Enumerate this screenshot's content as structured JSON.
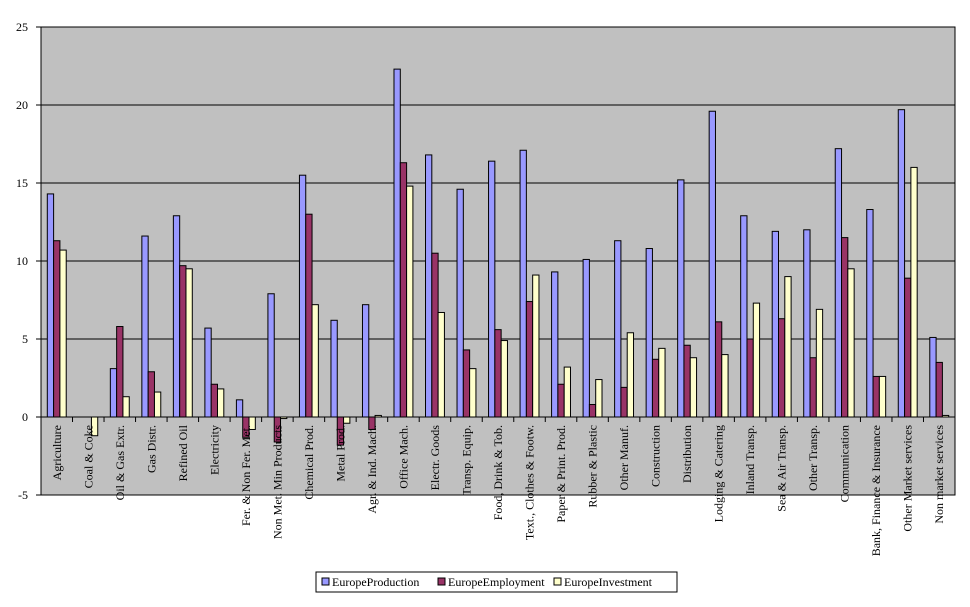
{
  "chart_data": {
    "type": "bar",
    "ylim": [
      -5,
      25
    ],
    "yticks": [
      -5,
      0,
      5,
      10,
      15,
      20,
      25
    ],
    "grid": true,
    "legend_position": "bottom",
    "background": "#c0c0c0",
    "categories": [
      "Agriculture",
      "Coal & Coke",
      "Oil & Gas Extr.",
      "Gas Distr.",
      "Refined Oil",
      "Electricity",
      "Fer. & Non Fer. Met.",
      "Non Met. Min Products",
      "Chemical Prod.",
      "Metal Prod.",
      "Agr. & Ind. Mach.",
      "Office Mach.",
      "Electr. Goods",
      "Transp. Equip.",
      "Food, Drink & Tob.",
      "Text., Clothes & Footw.",
      "Paper & Print. Prod.",
      "Rubber & Plastic",
      "Other Manuf.",
      "Construction",
      "Distribution",
      "Lodging & Catering",
      "Inland Transp.",
      "Sea & Air Transp.",
      "Other Transp.",
      "Communication",
      "Bank, Finance & Insurance",
      "Other Market services",
      "Non market services"
    ],
    "series": [
      {
        "name": "EuropeProduction",
        "color": "#9999ff",
        "values": [
          14.3,
          0,
          3.1,
          11.6,
          12.9,
          5.7,
          1.1,
          7.9,
          15.5,
          6.2,
          7.2,
          22.3,
          16.8,
          14.6,
          16.4,
          17.1,
          9.3,
          10.1,
          11.3,
          10.8,
          15.2,
          19.6,
          12.9,
          11.9,
          12.0,
          17.2,
          13.3,
          19.7,
          5.1
        ]
      },
      {
        "name": "EuropeEmployment",
        "color": "#993366",
        "values": [
          11.3,
          0,
          5.8,
          2.9,
          9.7,
          2.1,
          -1.3,
          -1.6,
          13.0,
          -1.8,
          -0.8,
          16.3,
          10.5,
          4.3,
          5.6,
          7.4,
          2.1,
          0.8,
          1.9,
          3.7,
          4.6,
          6.1,
          5.0,
          6.3,
          3.8,
          11.5,
          2.6,
          8.9,
          3.5
        ]
      },
      {
        "name": "EuropeInvestment",
        "color": "#ffffcc",
        "values": [
          10.7,
          -1.2,
          1.3,
          1.6,
          9.5,
          1.8,
          -0.8,
          -0.1,
          7.2,
          -0.4,
          0.1,
          14.8,
          6.7,
          3.1,
          4.9,
          9.1,
          3.2,
          2.4,
          5.4,
          4.4,
          3.8,
          4.0,
          7.3,
          9.0,
          6.9,
          9.5,
          2.6,
          16.0,
          0.1
        ]
      }
    ]
  }
}
